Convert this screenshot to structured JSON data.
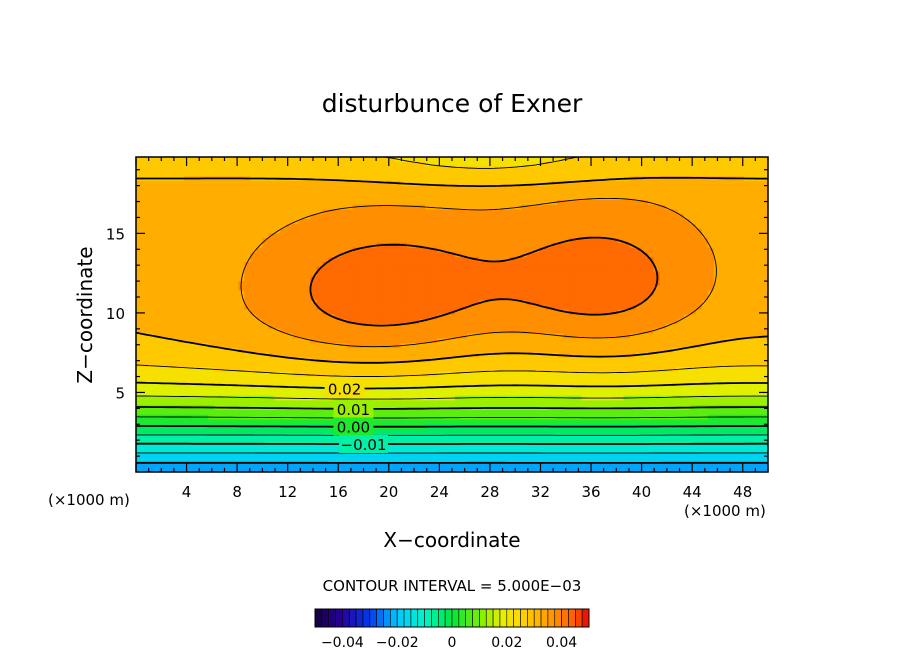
{
  "chart_data": {
    "type": "heatmap",
    "title": "disturbunce of Exner",
    "xlabel": "X−coordinate",
    "ylabel": "Z−coordinate",
    "x_unit": "(×1000 m)",
    "x_unit_right": "(×1000 m)",
    "xlim": [
      0,
      50
    ],
    "ylim": [
      0,
      19.8
    ],
    "x_ticks": [
      4,
      8,
      12,
      16,
      20,
      24,
      28,
      32,
      36,
      40,
      44,
      48
    ],
    "y_ticks": [
      5,
      10,
      15
    ],
    "contour_interval_text": "CONTOUR INTERVAL = 5.000E−03",
    "contour_labels": [
      {
        "text": "0.02",
        "x": 16.5,
        "value": 0.02
      },
      {
        "text": "0.01",
        "x": 17.2,
        "value": 0.01
      },
      {
        "text": "0.00",
        "x": 17.2,
        "value": 0.0
      },
      {
        "text": "−0.01",
        "x": 18.0,
        "value": -0.01
      }
    ],
    "colorbar": {
      "range": [
        -0.05,
        0.05
      ],
      "tick_values": [
        -0.04,
        -0.02,
        0,
        0.02,
        0.04
      ],
      "tick_labels": [
        "−0.04",
        "−0.02",
        "0",
        "0.02",
        "0.04"
      ]
    },
    "field": {
      "description_levels": [
        -0.02,
        -0.015,
        -0.01,
        -0.005,
        0,
        0.005,
        0.01,
        0.015,
        0.02,
        0.025,
        0.03,
        0.035,
        0.04
      ],
      "max_centers": [
        [
          19,
          11
        ],
        [
          38,
          11.5
        ]
      ],
      "max_value": 0.042,
      "min_value": -0.022
    }
  }
}
